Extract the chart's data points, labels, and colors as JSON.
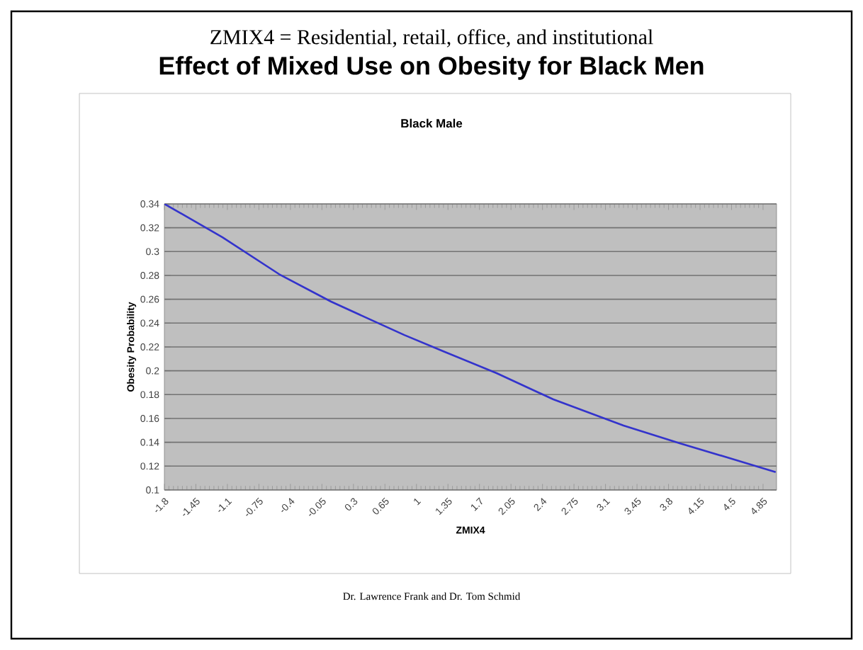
{
  "chart_data": {
    "type": "line",
    "title": "Effect of Mixed Use on Obesity for Black Men",
    "subtitle": "ZMIX4 = Residential, retail, office, and institutional",
    "annotations": [
      "Black Male",
      "Dr. Lawrence Frank and Dr. Tom Schmid"
    ],
    "xlabel": "ZMIX4",
    "ylabel": "Obesity Probability",
    "x": [
      -1.8,
      -1.155,
      -0.525,
      0.052,
      0.865,
      1.31,
      1.89,
      2.52,
      3.3,
      3.93,
      4.51,
      4.99
    ],
    "series": [
      {
        "color": "#3333cc",
        "values": [
          0.34,
          0.312,
          0.281,
          0.258,
          0.23,
          0.216,
          0.198,
          0.176,
          0.154,
          0.139,
          0.126,
          0.115
        ]
      }
    ],
    "xlim": [
      -1.8,
      5.0
    ],
    "ylim": [
      0.1,
      0.34
    ],
    "xticks": [
      -1.8,
      -1.45,
      -1.1,
      -0.75,
      -0.4,
      -0.05,
      0.3,
      0.65,
      1,
      1.35,
      1.7,
      2.05,
      2.4,
      2.75,
      3.1,
      3.45,
      3.8,
      4.15,
      4.5,
      4.85
    ],
    "yticks": [
      0.1,
      0.12,
      0.14,
      0.16,
      0.18,
      0.2,
      0.22,
      0.24,
      0.26,
      0.28,
      0.3,
      0.32,
      0.34
    ],
    "grid": "y"
  }
}
